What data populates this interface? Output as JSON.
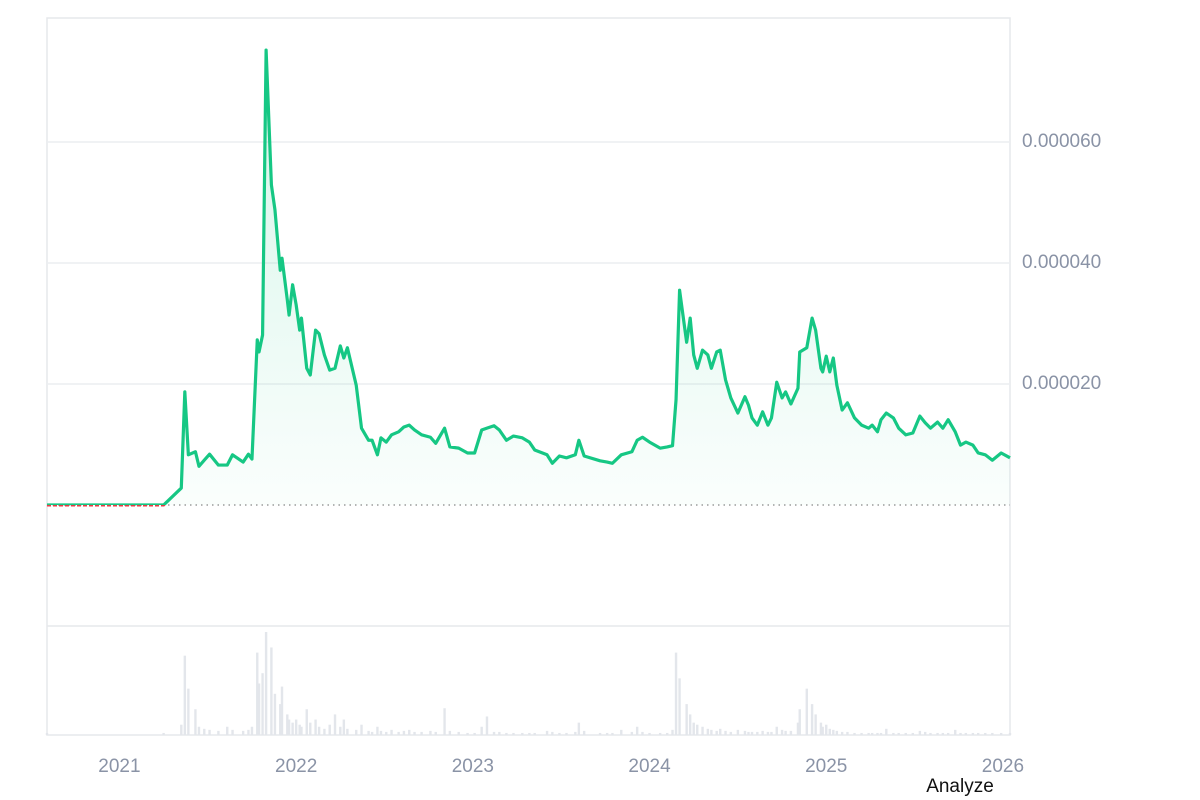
{
  "chart_data": {
    "type": "line",
    "x": [
      2020.59,
      2021.25,
      2021.35,
      2021.37,
      2021.39,
      2021.43,
      2021.45,
      2021.48,
      2021.51,
      2021.56,
      2021.61,
      2021.64,
      2021.7,
      2021.73,
      2021.75,
      2021.78,
      2021.79,
      2021.81,
      2021.83,
      2021.86,
      2021.88,
      2021.91,
      2021.92,
      2021.95,
      2021.96,
      2021.98,
      2022.0,
      2022.02,
      2022.03,
      2022.06,
      2022.08,
      2022.11,
      2022.13,
      2022.16,
      2022.19,
      2022.22,
      2022.25,
      2022.27,
      2022.29,
      2022.34,
      2022.37,
      2022.41,
      2022.43,
      2022.46,
      2022.48,
      2022.51,
      2022.54,
      2022.58,
      2022.61,
      2022.64,
      2022.67,
      2022.71,
      2022.76,
      2022.79,
      2022.84,
      2022.87,
      2022.92,
      2022.97,
      2023.01,
      2023.05,
      2023.08,
      2023.12,
      2023.15,
      2023.19,
      2023.23,
      2023.28,
      2023.32,
      2023.35,
      2023.42,
      2023.45,
      2023.49,
      2023.53,
      2023.58,
      2023.6,
      2023.63,
      2023.72,
      2023.76,
      2023.79,
      2023.84,
      2023.9,
      2023.93,
      2023.96,
      2024.0,
      2024.06,
      2024.1,
      2024.13,
      2024.15,
      2024.17,
      2024.21,
      2024.23,
      2024.25,
      2024.27,
      2024.3,
      2024.33,
      2024.35,
      2024.38,
      2024.4,
      2024.43,
      2024.46,
      2024.5,
      2024.54,
      2024.56,
      2024.58,
      2024.61,
      2024.64,
      2024.67,
      2024.69,
      2024.72,
      2024.75,
      2024.77,
      2024.8,
      2024.84,
      2024.85,
      2024.89,
      2024.92,
      2024.94,
      2024.97,
      2024.98,
      2025.0,
      2025.02,
      2025.04,
      2025.06,
      2025.09,
      2025.12,
      2025.16,
      2025.2,
      2025.24,
      2025.26,
      2025.29,
      2025.31,
      2025.34,
      2025.38,
      2025.41,
      2025.45,
      2025.49,
      2025.53,
      2025.56,
      2025.59,
      2025.63,
      2025.66,
      2025.69,
      2025.73,
      2025.76,
      2025.79,
      2025.83,
      2025.86,
      2025.9,
      2025.94,
      2025.99,
      2026.04
    ],
    "values": [
      0,
      0,
      2.8e-06,
      1.87e-05,
      8.3e-06,
      8.8e-06,
      6.4e-06,
      7.4e-06,
      8.4e-06,
      6.6e-06,
      6.6e-06,
      8.3e-06,
      7.1e-06,
      8.4e-06,
      7.6e-06,
      2.73e-05,
      2.53e-05,
      2.81e-05,
      7.52e-05,
      5.29e-05,
      4.88e-05,
      3.88e-05,
      4.08e-05,
      3.39e-05,
      3.14e-05,
      3.64e-05,
      3.31e-05,
      2.89e-05,
      3.09e-05,
      2.26e-05,
      2.15e-05,
      2.89e-05,
      2.83e-05,
      2.48e-05,
      2.23e-05,
      2.26e-05,
      2.63e-05,
      2.43e-05,
      2.6e-05,
      1.98e-05,
      1.27e-05,
      1.07e-05,
      1.07e-05,
      8.3e-06,
      1.11e-05,
      1.04e-05,
      1.16e-05,
      1.21e-05,
      1.29e-05,
      1.32e-05,
      1.24e-05,
      1.16e-05,
      1.12e-05,
      1.02e-05,
      1.27e-05,
      9.6e-06,
      9.4e-06,
      8.6e-06,
      8.6e-06,
      1.24e-05,
      1.27e-05,
      1.31e-05,
      1.24e-05,
      1.07e-05,
      1.14e-05,
      1.11e-05,
      1.04e-05,
      9.1e-06,
      8.3e-06,
      6.9e-06,
      8.1e-06,
      7.8e-06,
      8.3e-06,
      1.07e-05,
      8.1e-06,
      7.3e-06,
      7.1e-06,
      6.9e-06,
      8.3e-06,
      8.8e-06,
      1.07e-05,
      1.12e-05,
      1.04e-05,
      9.4e-06,
      9.6e-06,
      9.8e-06,
      1.74e-05,
      3.55e-05,
      2.69e-05,
      3.09e-05,
      2.48e-05,
      2.26e-05,
      2.56e-05,
      2.48e-05,
      2.26e-05,
      2.53e-05,
      2.56e-05,
      2.07e-05,
      1.77e-05,
      1.52e-05,
      1.79e-05,
      1.65e-05,
      1.44e-05,
      1.32e-05,
      1.54e-05,
      1.32e-05,
      1.44e-05,
      2.03e-05,
      1.77e-05,
      1.87e-05,
      1.67e-05,
      1.93e-05,
      2.53e-05,
      2.6e-05,
      3.09e-05,
      2.89e-05,
      2.26e-05,
      2.2e-05,
      2.46e-05,
      2.2e-05,
      2.43e-05,
      1.98e-05,
      1.57e-05,
      1.69e-05,
      1.44e-05,
      1.32e-05,
      1.27e-05,
      1.32e-05,
      1.21e-05,
      1.41e-05,
      1.52e-05,
      1.44e-05,
      1.27e-05,
      1.16e-05,
      1.19e-05,
      1.47e-05,
      1.36e-05,
      1.27e-05,
      1.37e-05,
      1.27e-05,
      1.41e-05,
      1.21e-05,
      9.9e-06,
      1.04e-05,
      9.9e-06,
      8.6e-06,
      8.3e-06,
      7.4e-06,
      8.6e-06,
      7.8e-06
    ],
    "volume": [
      2,
      2,
      10,
      77,
      45,
      25,
      8,
      6,
      5,
      4,
      8,
      5,
      4,
      5,
      8,
      80,
      50,
      60,
      100,
      85,
      40,
      30,
      47,
      20,
      15,
      12,
      15,
      10,
      8,
      25,
      12,
      15,
      8,
      6,
      10,
      20,
      8,
      15,
      6,
      5,
      10,
      4,
      3,
      8,
      4,
      3,
      5,
      3,
      4,
      5,
      3,
      3,
      4,
      3,
      26,
      4,
      3,
      2,
      2,
      8,
      18,
      3,
      3,
      2,
      2,
      2,
      2,
      2,
      4,
      3,
      2,
      2,
      3,
      12,
      4,
      2,
      2,
      2,
      5,
      3,
      8,
      3,
      2,
      2,
      2,
      5,
      80,
      55,
      30,
      20,
      12,
      10,
      8,
      6,
      5,
      4,
      6,
      4,
      3,
      5,
      4,
      3,
      3,
      3,
      4,
      3,
      3,
      8,
      5,
      4,
      4,
      12,
      25,
      45,
      30,
      20,
      12,
      8,
      10,
      6,
      5,
      4,
      3,
      3,
      2,
      2,
      2,
      2,
      2,
      2,
      6,
      2,
      2,
      2,
      2,
      4,
      3,
      2,
      2,
      2,
      2,
      5,
      2,
      2,
      2,
      2,
      2,
      2,
      2,
      2
    ],
    "color": "#16c784",
    "below_color": "#ea3943",
    "volume_color": "#e3e6eb",
    "baseline": 0,
    "xlim": [
      2020.59,
      2026.04
    ],
    "xticks": [
      2021,
      2022,
      2023,
      2024,
      2025,
      2026
    ],
    "ylim": [
      -2e-05,
      8.05e-05
    ],
    "yticks": [
      {
        "value": 2e-05,
        "label": "0.000020"
      },
      {
        "value": 4e-05,
        "label": "0.000040"
      },
      {
        "value": 6e-05,
        "label": "0.000060"
      }
    ],
    "grid": true
  },
  "analyze_link": "Analyze"
}
